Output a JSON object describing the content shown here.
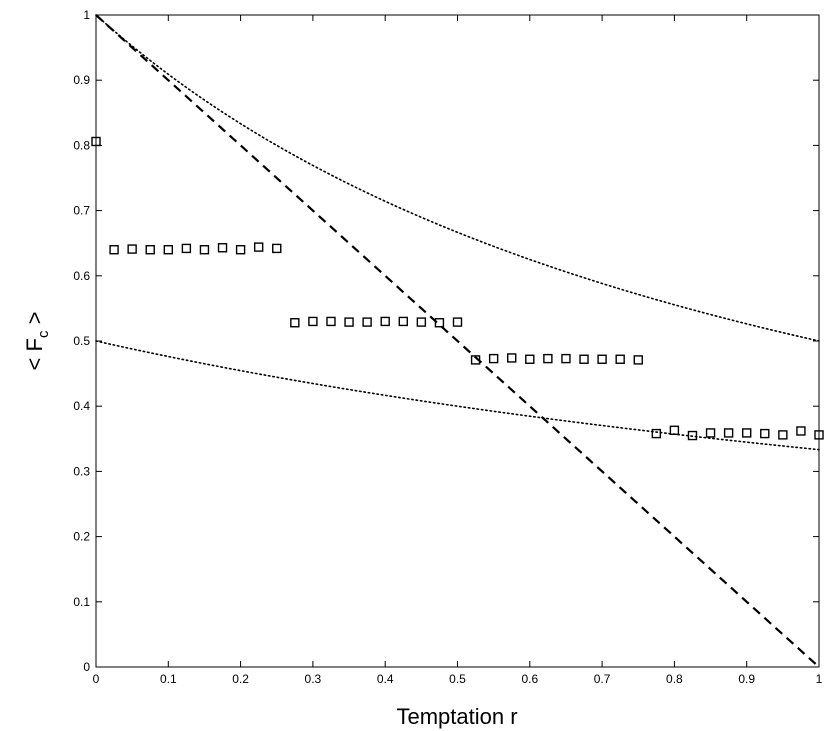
{
  "chart_data": {
    "type": "scatter",
    "title": "",
    "xlabel": "Temptation r",
    "ylabel": "< F",
    "ylabel_sub": "c",
    "ylabel_end": " >",
    "xlim": [
      0,
      1
    ],
    "ylim": [
      0,
      1
    ],
    "grid": false,
    "legend": "none",
    "x_ticks": [
      "0",
      "0.1",
      "0.2",
      "0.3",
      "0.4",
      "0.5",
      "0.6",
      "0.7",
      "0.8",
      "0.9",
      "1"
    ],
    "y_ticks": [
      "0",
      "0.1",
      "0.2",
      "0.3",
      "0.4",
      "0.5",
      "0.6",
      "0.7",
      "0.8",
      "0.9",
      "1"
    ],
    "markers": {
      "x": [
        0.0,
        0.025,
        0.05,
        0.075,
        0.1,
        0.125,
        0.15,
        0.175,
        0.2,
        0.225,
        0.25,
        0.275,
        0.3,
        0.325,
        0.35,
        0.375,
        0.4,
        0.425,
        0.45,
        0.475,
        0.5,
        0.525,
        0.55,
        0.575,
        0.6,
        0.625,
        0.65,
        0.675,
        0.7,
        0.725,
        0.75,
        0.775,
        0.8,
        0.825,
        0.85,
        0.875,
        0.9,
        0.925,
        0.95,
        0.975,
        1.0
      ],
      "y": [
        0.806,
        0.64,
        0.641,
        0.64,
        0.64,
        0.642,
        0.64,
        0.643,
        0.64,
        0.644,
        0.642,
        0.528,
        0.53,
        0.53,
        0.529,
        0.529,
        0.53,
        0.53,
        0.529,
        0.528,
        0.529,
        0.471,
        0.473,
        0.474,
        0.472,
        0.473,
        0.473,
        0.472,
        0.472,
        0.472,
        0.471,
        0.358,
        0.363,
        0.355,
        0.359,
        0.359,
        0.359,
        0.358,
        0.356,
        0.362,
        0.356
      ],
      "color": "#000000"
    },
    "dashed_line": {
      "x": [
        0,
        1
      ],
      "y": [
        1,
        0
      ],
      "color": "#000000"
    },
    "upper_dotted_curve": {
      "formula": "1/(1+r)",
      "color": "#000000"
    },
    "lower_dotted_curve": {
      "formula": "1/(2+r)",
      "color": "#000000"
    }
  }
}
